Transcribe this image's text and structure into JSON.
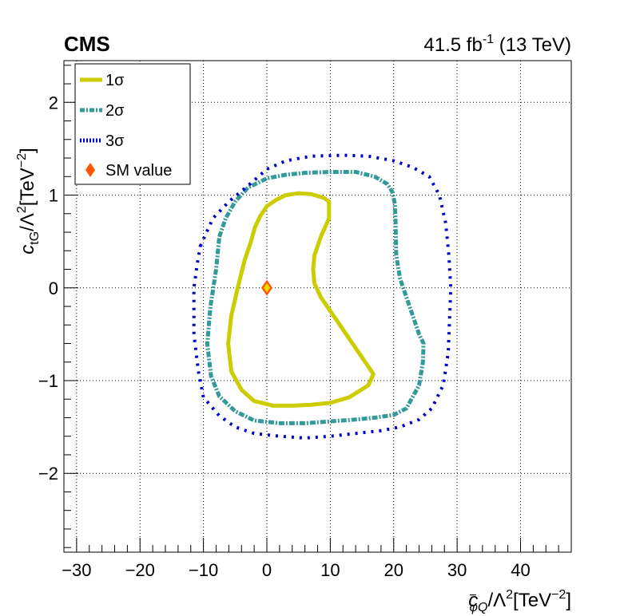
{
  "chart_data": {
    "type": "contour",
    "experiment_label": "CMS",
    "luminosity": "41.5",
    "luminosity_unit_base": "fb",
    "luminosity_unit_exp": "-1",
    "energy": "(13 TeV)",
    "xlabel": {
      "var": "c",
      "sup": "−",
      "sub": "φQ",
      "rest": "/Λ",
      "rest_exp": "2",
      "unit": "[TeV",
      "unit_exp": "−2",
      "close": "]"
    },
    "ylabel": {
      "var": "c",
      "sub": "tG",
      "rest": "/Λ",
      "rest_exp": "2",
      "unit": "[TeV",
      "unit_exp": "−2",
      "close": "]"
    },
    "xlim": [
      -32,
      48
    ],
    "ylim": [
      -2.85,
      2.45
    ],
    "xticks": [
      -30,
      -20,
      -10,
      0,
      10,
      20,
      30,
      40
    ],
    "xtick_labels": [
      "−30",
      "−20",
      "−10",
      "0",
      "10",
      "20",
      "30",
      "40"
    ],
    "yticks": [
      -2,
      -1,
      0,
      1,
      2
    ],
    "ytick_labels": [
      "−2",
      "−1",
      "0",
      "1",
      "2"
    ],
    "grid": true,
    "legend_position": "top-left",
    "series": [
      {
        "name": "1σ",
        "color": "#cccc00",
        "style": "solid",
        "points": [
          [
            -1.9,
            0.65
          ],
          [
            -1,
            0.78
          ],
          [
            0,
            0.88
          ],
          [
            1.5,
            0.95
          ],
          [
            3,
            1
          ],
          [
            5,
            1.02
          ],
          [
            7,
            1.01
          ],
          [
            9,
            0.97
          ],
          [
            9.8,
            0.93
          ],
          [
            9.8,
            0.75
          ],
          [
            8.5,
            0.55
          ],
          [
            7.5,
            0.35
          ],
          [
            7.3,
            0.2
          ],
          [
            7.5,
            0.05
          ],
          [
            8.5,
            -0.1
          ],
          [
            10,
            -0.25
          ],
          [
            11.5,
            -0.4
          ],
          [
            13,
            -0.55
          ],
          [
            14.5,
            -0.7
          ],
          [
            16,
            -0.85
          ],
          [
            16.8,
            -0.93
          ],
          [
            16,
            -1.05
          ],
          [
            13,
            -1.18
          ],
          [
            10,
            -1.24
          ],
          [
            7,
            -1.26
          ],
          [
            4,
            -1.27
          ],
          [
            1,
            -1.27
          ],
          [
            -2,
            -1.22
          ],
          [
            -4,
            -1.1
          ],
          [
            -5.6,
            -0.9
          ],
          [
            -6.1,
            -0.6
          ],
          [
            -5.6,
            -0.3
          ],
          [
            -4.6,
            0
          ],
          [
            -3.5,
            0.3
          ],
          [
            -2.5,
            0.5
          ],
          [
            -1.9,
            0.65
          ]
        ]
      },
      {
        "name": "2σ",
        "color": "#339999",
        "style": "dash-dot",
        "points": [
          [
            -7.5,
            0.55
          ],
          [
            -6.5,
            0.75
          ],
          [
            -5,
            0.93
          ],
          [
            -3,
            1.08
          ],
          [
            0,
            1.18
          ],
          [
            3,
            1.22
          ],
          [
            6,
            1.24
          ],
          [
            10,
            1.25
          ],
          [
            14,
            1.25
          ],
          [
            17,
            1.2
          ],
          [
            19,
            1.12
          ],
          [
            19.8,
            1.03
          ],
          [
            20.2,
            0.9
          ],
          [
            20.3,
            0.7
          ],
          [
            20.4,
            0.35
          ],
          [
            21,
            0.1
          ],
          [
            22,
            -0.1
          ],
          [
            23,
            -0.3
          ],
          [
            24,
            -0.5
          ],
          [
            24.7,
            -0.6
          ],
          [
            24.6,
            -0.8
          ],
          [
            24,
            -1.05
          ],
          [
            22,
            -1.3
          ],
          [
            20,
            -1.37
          ],
          [
            17,
            -1.4
          ],
          [
            14,
            -1.42
          ],
          [
            10,
            -1.44
          ],
          [
            6,
            -1.46
          ],
          [
            2,
            -1.46
          ],
          [
            -2,
            -1.43
          ],
          [
            -5,
            -1.33
          ],
          [
            -7.5,
            -1.17
          ],
          [
            -8.8,
            -0.95
          ],
          [
            -9.4,
            -0.6
          ],
          [
            -8.9,
            -0.2
          ],
          [
            -8,
            0.2
          ],
          [
            -7.5,
            0.55
          ]
        ]
      },
      {
        "name": "3σ",
        "color": "#0000cc",
        "style": "dotted",
        "points": [
          [
            -10.5,
            0.45
          ],
          [
            -9.5,
            0.6
          ],
          [
            -8.5,
            0.75
          ],
          [
            -6,
            0.93
          ],
          [
            -3,
            1.1
          ],
          [
            0,
            1.28
          ],
          [
            3,
            1.37
          ],
          [
            7,
            1.42
          ],
          [
            12,
            1.43
          ],
          [
            16,
            1.42
          ],
          [
            20,
            1.37
          ],
          [
            23,
            1.3
          ],
          [
            25.6,
            1.2
          ],
          [
            27.2,
            1
          ],
          [
            28.2,
            0.7
          ],
          [
            28.7,
            0.35
          ],
          [
            29,
            0
          ],
          [
            28.8,
            -0.35
          ],
          [
            28.6,
            -0.7
          ],
          [
            27.8,
            -1.05
          ],
          [
            26,
            -1.3
          ],
          [
            24,
            -1.42
          ],
          [
            21,
            -1.5
          ],
          [
            18,
            -1.54
          ],
          [
            14,
            -1.57
          ],
          [
            10,
            -1.6
          ],
          [
            6,
            -1.62
          ],
          [
            2,
            -1.6
          ],
          [
            -2,
            -1.57
          ],
          [
            -5,
            -1.5
          ],
          [
            -7.5,
            -1.38
          ],
          [
            -10,
            -1.18
          ],
          [
            -10.8,
            -0.9
          ],
          [
            -11.5,
            -0.5
          ],
          [
            -11.5,
            0
          ],
          [
            -11,
            0.25
          ],
          [
            -10.5,
            0.45
          ]
        ]
      },
      {
        "name": "SM value",
        "color": "#ff5500",
        "style": "marker",
        "points": [
          [
            0,
            0
          ]
        ]
      }
    ]
  }
}
